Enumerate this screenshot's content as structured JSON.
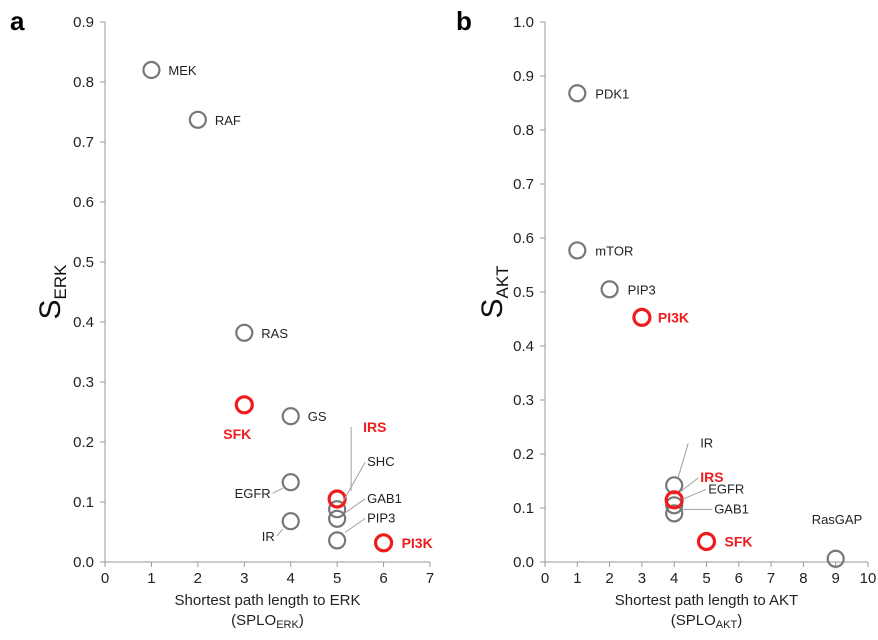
{
  "chart_data": [
    {
      "type": "scatter",
      "panel": "a",
      "xlabel": "Shortest path length to ERK",
      "xlabel2": {
        "main": "(SPLO",
        "sub": "ERK",
        "close": ")"
      },
      "ylabel": {
        "main": "S",
        "sub": "ERK"
      },
      "xlim": [
        0,
        7
      ],
      "ylim": [
        0,
        0.9
      ],
      "xticks": [
        "0",
        "1",
        "2",
        "3",
        "4",
        "5",
        "6",
        "7"
      ],
      "yticks": [
        "0.0",
        "0.1",
        "0.2",
        "0.3",
        "0.4",
        "0.5",
        "0.6",
        "0.7",
        "0.8",
        "0.9"
      ],
      "grid": false,
      "points": [
        {
          "label": "MEK",
          "x": 1,
          "y": 0.82,
          "highlight": false
        },
        {
          "label": "RAF",
          "x": 2,
          "y": 0.737,
          "highlight": false
        },
        {
          "label": "RAS",
          "x": 3,
          "y": 0.382,
          "highlight": false
        },
        {
          "label": "SFK",
          "x": 3,
          "y": 0.262,
          "highlight": true
        },
        {
          "label": "GS",
          "x": 4,
          "y": 0.243,
          "highlight": false
        },
        {
          "label": "EGFR",
          "x": 4,
          "y": 0.133,
          "highlight": false
        },
        {
          "label": "IR",
          "x": 4,
          "y": 0.068,
          "highlight": false
        },
        {
          "label": "IRS",
          "x": 5,
          "y": 0.105,
          "highlight": true
        },
        {
          "label": "SHC",
          "x": 5,
          "y": 0.088,
          "highlight": false
        },
        {
          "label": "GAB1",
          "x": 5,
          "y": 0.072,
          "highlight": false
        },
        {
          "label": "PIP3",
          "x": 5,
          "y": 0.036,
          "highlight": false
        },
        {
          "label": "PI3K",
          "x": 6,
          "y": 0.032,
          "highlight": true
        }
      ]
    },
    {
      "type": "scatter",
      "panel": "b",
      "xlabel": "Shortest path length to AKT",
      "xlabel2": {
        "main": "(SPLO",
        "sub": "AKT",
        "close": ")"
      },
      "ylabel": {
        "main": "S",
        "sub": "AKT"
      },
      "xlim": [
        0,
        10
      ],
      "ylim": [
        0,
        1.0
      ],
      "xticks": [
        "0",
        "1",
        "2",
        "3",
        "4",
        "5",
        "6",
        "7",
        "8",
        "9",
        "10"
      ],
      "yticks": [
        "0.0",
        "0.1",
        "0.2",
        "0.3",
        "0.4",
        "0.5",
        "0.6",
        "0.7",
        "0.8",
        "0.9",
        "1.0"
      ],
      "grid": false,
      "points": [
        {
          "label": "PDK1",
          "x": 1,
          "y": 0.868,
          "highlight": false
        },
        {
          "label": "mTOR",
          "x": 1,
          "y": 0.577,
          "highlight": false
        },
        {
          "label": "PIP3",
          "x": 2,
          "y": 0.505,
          "highlight": false
        },
        {
          "label": "PI3K",
          "x": 3,
          "y": 0.453,
          "highlight": true
        },
        {
          "label": "IR",
          "x": 4,
          "y": 0.142,
          "highlight": false
        },
        {
          "label": "IRS",
          "x": 4,
          "y": 0.115,
          "highlight": true
        },
        {
          "label": "EGFR",
          "x": 4,
          "y": 0.105,
          "highlight": false
        },
        {
          "label": "GAB1",
          "x": 4,
          "y": 0.09,
          "highlight": false
        },
        {
          "label": "SFK",
          "x": 5,
          "y": 0.038,
          "highlight": true
        },
        {
          "label": "RasGAP",
          "x": 9,
          "y": 0.006,
          "highlight": false
        }
      ]
    }
  ],
  "colors": {
    "highlight": "#ee1c1c",
    "marker": "#777777",
    "axis": "#9a9a9a"
  }
}
